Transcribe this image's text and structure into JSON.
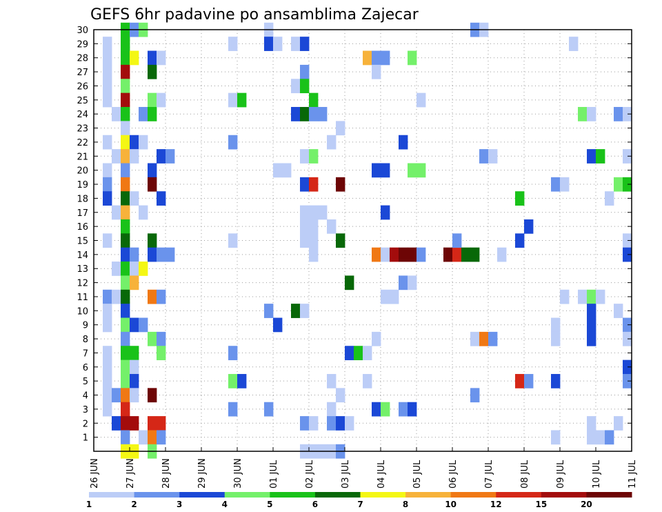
{
  "chart_data": {
    "type": "heatmap",
    "title": "GEFS 6hr padavine po ansamblima Zajecar",
    "xlabel": "",
    "ylabel": "",
    "x_tick_labels": [
      "26 JUN",
      "27 JUN",
      "28 JUN",
      "29 JUN",
      "30 JUN",
      "01 JUL",
      "02 JUL",
      "03 JUL",
      "04 JUL",
      "05 JUL",
      "06 JUL",
      "07 JUL",
      "08 JUL",
      "09 JUL",
      "10 JUL",
      "11 JUL"
    ],
    "y_tick_labels": [
      "1",
      "2",
      "3",
      "4",
      "5",
      "6",
      "7",
      "8",
      "9",
      "10",
      "11",
      "12",
      "13",
      "14",
      "15",
      "16",
      "17",
      "18",
      "19",
      "20",
      "21",
      "22",
      "23",
      "24",
      "25",
      "26",
      "27",
      "28",
      "29",
      "30"
    ],
    "ylim": [
      0,
      30
    ],
    "steps_per_day": 4,
    "grid": "dotted",
    "legend": {
      "placement": "bottom",
      "boundaries": [
        "1",
        "2",
        "3",
        "4",
        "5",
        "6",
        "7",
        "8",
        "10",
        "12",
        "15",
        "20"
      ],
      "colors": [
        "#bccdf7",
        "#6a93ec",
        "#1b48d6",
        "#74f06a",
        "#19c219",
        "#086808",
        "#f4f714",
        "#f7b23a",
        "#f07814",
        "#d52717",
        "#a30c0c",
        "#6d0505"
      ]
    },
    "units_note": "cells: [day_offset_from_26_JUN, ensemble_member, color_class] where class k means value between boundary k and k+1",
    "cells": [
      [
        0.25,
        29,
        0
      ],
      [
        0.25,
        28,
        0
      ],
      [
        0.25,
        27,
        0
      ],
      [
        0.25,
        26,
        0
      ],
      [
        0.25,
        25,
        0
      ],
      [
        0.25,
        22,
        0
      ],
      [
        0.25,
        20,
        0
      ],
      [
        0.25,
        19,
        1
      ],
      [
        0.25,
        18,
        2
      ],
      [
        0.25,
        15,
        0
      ],
      [
        0.25,
        11,
        1
      ],
      [
        0.25,
        10,
        0
      ],
      [
        0.25,
        9,
        0
      ],
      [
        0.25,
        7,
        0
      ],
      [
        0.25,
        6,
        0
      ],
      [
        0.25,
        5,
        0
      ],
      [
        0.25,
        4,
        0
      ],
      [
        0.25,
        3,
        0
      ],
      [
        0.5,
        24,
        0
      ],
      [
        0.5,
        21,
        0
      ],
      [
        0.5,
        17,
        0
      ],
      [
        0.5,
        13,
        0
      ],
      [
        0.5,
        11,
        0
      ],
      [
        0.5,
        4,
        1
      ],
      [
        0.5,
        2,
        2
      ],
      [
        0.75,
        30,
        4
      ],
      [
        0.75,
        29,
        4
      ],
      [
        0.75,
        28,
        4
      ],
      [
        0.75,
        27,
        10
      ],
      [
        0.75,
        26,
        3
      ],
      [
        0.75,
        25,
        10
      ],
      [
        0.75,
        24,
        4
      ],
      [
        0.75,
        23,
        0
      ],
      [
        0.75,
        22,
        6
      ],
      [
        0.75,
        21,
        7
      ],
      [
        0.75,
        20,
        1
      ],
      [
        0.75,
        19,
        8
      ],
      [
        0.75,
        18,
        5
      ],
      [
        0.75,
        17,
        7
      ],
      [
        0.75,
        16,
        4
      ],
      [
        0.75,
        15,
        5
      ],
      [
        0.75,
        14,
        2
      ],
      [
        0.75,
        13,
        4
      ],
      [
        0.75,
        12,
        3
      ],
      [
        0.75,
        11,
        5
      ],
      [
        0.75,
        10,
        2
      ],
      [
        0.75,
        9,
        3
      ],
      [
        0.75,
        8,
        1
      ],
      [
        0.75,
        7,
        4
      ],
      [
        0.75,
        6,
        3
      ],
      [
        0.75,
        5,
        3
      ],
      [
        0.75,
        4,
        8
      ],
      [
        0.75,
        3,
        9
      ],
      [
        0.75,
        2,
        10
      ],
      [
        0.75,
        1,
        1
      ],
      [
        0.75,
        0,
        6
      ],
      [
        1.0,
        30,
        1
      ],
      [
        1.0,
        28,
        6
      ],
      [
        1.0,
        22,
        2
      ],
      [
        1.0,
        21,
        0
      ],
      [
        1.0,
        18,
        0
      ],
      [
        1.0,
        14,
        1
      ],
      [
        1.0,
        13,
        0
      ],
      [
        1.0,
        12,
        7
      ],
      [
        1.0,
        9,
        2
      ],
      [
        1.0,
        7,
        4
      ],
      [
        1.0,
        6,
        0
      ],
      [
        1.0,
        5,
        2
      ],
      [
        1.0,
        4,
        0
      ],
      [
        1.0,
        2,
        10
      ],
      [
        1.0,
        0,
        6
      ],
      [
        1.25,
        30,
        3
      ],
      [
        1.25,
        24,
        1
      ],
      [
        1.25,
        22,
        0
      ],
      [
        1.25,
        17,
        0
      ],
      [
        1.25,
        13,
        6
      ],
      [
        1.25,
        9,
        1
      ],
      [
        1.25,
        1,
        0
      ],
      [
        1.5,
        28,
        2
      ],
      [
        1.5,
        27,
        5
      ],
      [
        1.5,
        25,
        3
      ],
      [
        1.5,
        24,
        4
      ],
      [
        1.5,
        20,
        2
      ],
      [
        1.5,
        19,
        11
      ],
      [
        1.5,
        15,
        5
      ],
      [
        1.5,
        14,
        2
      ],
      [
        1.5,
        11,
        8
      ],
      [
        1.5,
        8,
        3
      ],
      [
        1.5,
        4,
        11
      ],
      [
        1.5,
        2,
        9
      ],
      [
        1.5,
        1,
        8
      ],
      [
        1.5,
        0,
        3
      ],
      [
        1.75,
        28,
        0
      ],
      [
        1.75,
        25,
        0
      ],
      [
        1.75,
        21,
        2
      ],
      [
        1.75,
        18,
        2
      ],
      [
        1.75,
        14,
        1
      ],
      [
        1.75,
        11,
        1
      ],
      [
        1.75,
        8,
        1
      ],
      [
        1.75,
        7,
        3
      ],
      [
        1.75,
        2,
        9
      ],
      [
        1.75,
        1,
        1
      ],
      [
        2.0,
        21,
        1
      ],
      [
        2.0,
        14,
        1
      ],
      [
        3.75,
        25,
        0
      ],
      [
        3.75,
        22,
        1
      ],
      [
        3.75,
        7,
        1
      ],
      [
        3.75,
        5,
        3
      ],
      [
        3.75,
        3,
        1
      ],
      [
        3.75,
        29,
        0
      ],
      [
        3.75,
        15,
        0
      ],
      [
        4.0,
        25,
        4
      ],
      [
        4.0,
        5,
        2
      ],
      [
        4.75,
        30,
        0
      ],
      [
        4.75,
        29,
        2
      ],
      [
        4.75,
        10,
        1
      ],
      [
        4.75,
        3,
        1
      ],
      [
        5.0,
        29,
        0
      ],
      [
        5.0,
        20,
        0
      ],
      [
        5.0,
        9,
        2
      ],
      [
        5.25,
        20,
        0
      ],
      [
        5.5,
        29,
        0
      ],
      [
        5.5,
        26,
        0
      ],
      [
        5.5,
        24,
        2
      ],
      [
        5.5,
        10,
        5
      ],
      [
        5.75,
        29,
        2
      ],
      [
        5.75,
        27,
        1
      ],
      [
        5.75,
        26,
        4
      ],
      [
        5.75,
        24,
        5
      ],
      [
        5.75,
        21,
        0
      ],
      [
        5.75,
        19,
        2
      ],
      [
        5.75,
        17,
        0
      ],
      [
        5.75,
        16,
        0
      ],
      [
        5.75,
        15,
        0
      ],
      [
        5.75,
        10,
        0
      ],
      [
        5.75,
        2,
        1
      ],
      [
        5.75,
        0,
        0
      ],
      [
        6.0,
        25,
        4
      ],
      [
        6.0,
        24,
        1
      ],
      [
        6.0,
        21,
        3
      ],
      [
        6.0,
        19,
        9
      ],
      [
        6.0,
        17,
        0
      ],
      [
        6.0,
        16,
        0
      ],
      [
        6.0,
        15,
        0
      ],
      [
        6.0,
        14,
        0
      ],
      [
        6.0,
        2,
        0
      ],
      [
        6.0,
        0,
        0
      ],
      [
        6.25,
        24,
        1
      ],
      [
        6.25,
        17,
        0
      ],
      [
        6.25,
        0,
        0
      ],
      [
        6.5,
        22,
        0
      ],
      [
        6.5,
        16,
        0
      ],
      [
        6.5,
        5,
        0
      ],
      [
        6.5,
        3,
        0
      ],
      [
        6.5,
        2,
        1
      ],
      [
        6.5,
        0,
        0
      ],
      [
        6.75,
        23,
        0
      ],
      [
        6.75,
        19,
        11
      ],
      [
        6.75,
        15,
        5
      ],
      [
        6.75,
        4,
        0
      ],
      [
        6.75,
        2,
        2
      ],
      [
        6.75,
        0,
        1
      ],
      [
        7.0,
        12,
        5
      ],
      [
        7.0,
        7,
        2
      ],
      [
        7.0,
        2,
        0
      ],
      [
        7.25,
        7,
        4
      ],
      [
        7.5,
        28,
        7
      ],
      [
        7.5,
        5,
        0
      ],
      [
        7.5,
        7,
        0
      ],
      [
        7.75,
        28,
        1
      ],
      [
        7.75,
        27,
        0
      ],
      [
        7.75,
        20,
        2
      ],
      [
        7.75,
        14,
        8
      ],
      [
        7.75,
        8,
        0
      ],
      [
        7.75,
        3,
        2
      ],
      [
        8.0,
        28,
        1
      ],
      [
        8.0,
        20,
        2
      ],
      [
        8.0,
        17,
        2
      ],
      [
        8.0,
        14,
        0
      ],
      [
        8.0,
        11,
        0
      ],
      [
        8.0,
        3,
        3
      ],
      [
        8.25,
        14,
        10
      ],
      [
        8.25,
        11,
        0
      ],
      [
        8.5,
        22,
        2
      ],
      [
        8.5,
        14,
        11
      ],
      [
        8.5,
        12,
        1
      ],
      [
        8.5,
        3,
        1
      ],
      [
        8.75,
        28,
        3
      ],
      [
        8.75,
        20,
        3
      ],
      [
        8.75,
        14,
        11
      ],
      [
        8.75,
        12,
        0
      ],
      [
        8.75,
        3,
        2
      ],
      [
        9.0,
        25,
        0
      ],
      [
        9.0,
        14,
        1
      ],
      [
        9.0,
        20,
        3
      ],
      [
        9.75,
        14,
        11
      ],
      [
        10.0,
        14,
        9
      ],
      [
        10.0,
        15,
        1
      ],
      [
        10.25,
        14,
        5
      ],
      [
        10.5,
        14,
        5
      ],
      [
        10.5,
        30,
        1
      ],
      [
        10.5,
        8,
        0
      ],
      [
        10.5,
        4,
        1
      ],
      [
        10.75,
        30,
        0
      ],
      [
        10.75,
        21,
        1
      ],
      [
        10.75,
        8,
        8
      ],
      [
        11.0,
        21,
        0
      ],
      [
        11.0,
        8,
        1
      ],
      [
        11.25,
        14,
        0
      ],
      [
        11.75,
        18,
        4
      ],
      [
        11.75,
        15,
        2
      ],
      [
        11.75,
        5,
        9
      ],
      [
        12.0,
        16,
        2
      ],
      [
        12.0,
        5,
        1
      ],
      [
        12.75,
        19,
        1
      ],
      [
        12.75,
        5,
        2
      ],
      [
        12.75,
        9,
        0
      ],
      [
        12.75,
        8,
        0
      ],
      [
        12.75,
        1,
        0
      ],
      [
        13.0,
        19,
        0
      ],
      [
        13.0,
        11,
        0
      ],
      [
        13.25,
        29,
        0
      ],
      [
        13.5,
        24,
        3
      ],
      [
        13.5,
        11,
        0
      ],
      [
        13.75,
        24,
        0
      ],
      [
        13.75,
        21,
        2
      ],
      [
        13.75,
        11,
        3
      ],
      [
        13.75,
        10,
        2
      ],
      [
        13.75,
        9,
        2
      ],
      [
        13.75,
        8,
        2
      ],
      [
        13.75,
        2,
        0
      ],
      [
        13.75,
        1,
        0
      ],
      [
        14.0,
        21,
        4
      ],
      [
        14.0,
        11,
        0
      ],
      [
        14.0,
        1,
        0
      ],
      [
        14.25,
        18,
        0
      ],
      [
        14.25,
        1,
        1
      ],
      [
        14.5,
        24,
        1
      ],
      [
        14.5,
        19,
        3
      ],
      [
        14.5,
        10,
        0
      ],
      [
        14.5,
        2,
        0
      ],
      [
        14.75,
        24,
        0
      ],
      [
        14.75,
        19,
        4
      ],
      [
        14.75,
        21,
        0
      ],
      [
        14.75,
        15,
        0
      ],
      [
        14.75,
        14,
        2
      ],
      [
        14.75,
        9,
        1
      ],
      [
        14.75,
        8,
        0
      ],
      [
        14.75,
        6,
        2
      ],
      [
        14.75,
        5,
        1
      ]
    ]
  }
}
